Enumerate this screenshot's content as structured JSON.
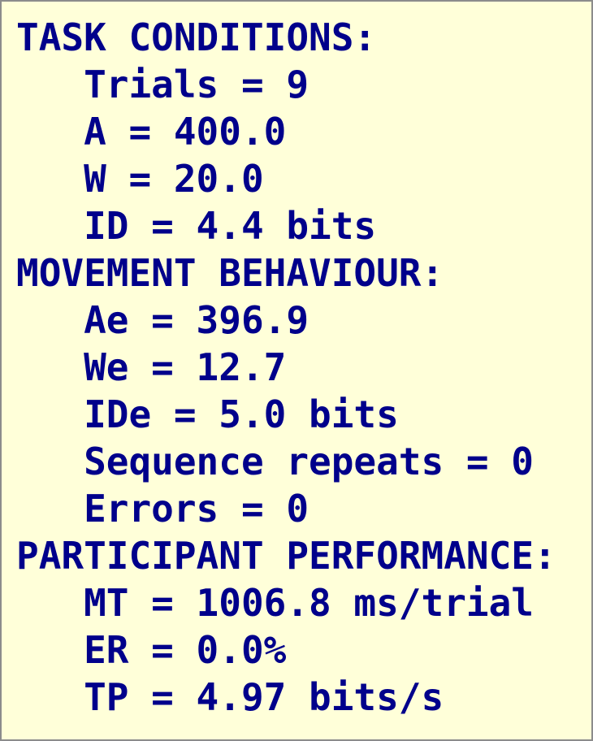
{
  "sections": [
    {
      "heading": "TASK CONDITIONS:",
      "items": [
        "Trials = 9",
        "A = 400.0",
        "W = 20.0",
        "ID = 4.4 bits"
      ]
    },
    {
      "heading": "MOVEMENT BEHAVIOUR:",
      "items": [
        "Ae = 396.9",
        "We = 12.7",
        "IDe = 5.0 bits",
        "Sequence repeats = 0",
        "Errors = 0"
      ]
    },
    {
      "heading": "PARTICIPANT PERFORMANCE:",
      "items": [
        "MT = 1006.8 ms/trial",
        "ER = 0.0%",
        "TP = 4.97 bits/s"
      ]
    }
  ]
}
